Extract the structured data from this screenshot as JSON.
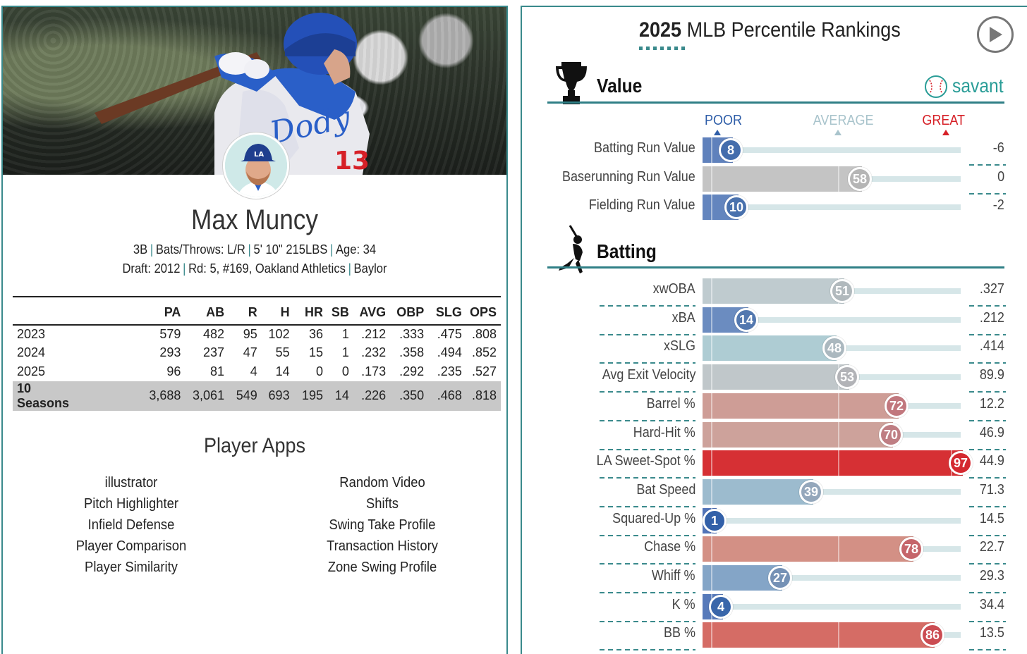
{
  "player": {
    "name": "Max Muncy",
    "position": "3B",
    "bats_throws": "Bats/Throws: L/R",
    "height_weight": "5' 10\" 215LBS",
    "age": "Age: 34",
    "draft_label": "Draft:",
    "draft_year": "2012",
    "draft_round": "Rd: 5, #169, Oakland Athletics",
    "school": "Baylor"
  },
  "stats_table": {
    "headers": [
      "",
      "PA",
      "AB",
      "R",
      "H",
      "HR",
      "SB",
      "AVG",
      "OBP",
      "SLG",
      "OPS"
    ],
    "rows": [
      [
        "2023",
        "579",
        "482",
        "95",
        "102",
        "36",
        "1",
        ".212",
        ".333",
        ".475",
        ".808"
      ],
      [
        "2024",
        "293",
        "237",
        "47",
        "55",
        "15",
        "1",
        ".232",
        ".358",
        ".494",
        ".852"
      ],
      [
        "2025",
        "96",
        "81",
        "4",
        "14",
        "0",
        "0",
        ".173",
        ".292",
        ".235",
        ".527"
      ]
    ],
    "total": [
      "10 Seasons",
      "3,688",
      "3,061",
      "549",
      "693",
      "195",
      "14",
      ".226",
      ".350",
      ".468",
      ".818"
    ]
  },
  "player_apps": {
    "title": "Player Apps",
    "left": [
      "illustrator",
      "Pitch Highlighter",
      "Infield Defense",
      "Player Comparison",
      "Player Similarity"
    ],
    "right": [
      "Random Video",
      "Shifts",
      "Swing Take Profile",
      "Transaction History",
      "Zone Swing Profile"
    ]
  },
  "rankings": {
    "title_year": "2025",
    "title_rest": "MLB Percentile Rankings",
    "brand": "savant",
    "scale": {
      "poor": "POOR",
      "average": "AVERAGE",
      "great": "GREAT"
    },
    "colors": {
      "poor": "#2f5ea8",
      "average": "#a9a9a9",
      "great": "#d62027",
      "teal": "#3a8a8c"
    },
    "sections": [
      {
        "title": "Value",
        "icon": "trophy-icon",
        "metrics": [
          {
            "label": "Batting Run Value",
            "percentile": 8,
            "value": "-6"
          },
          {
            "label": "Baserunning Run Value",
            "percentile": 58,
            "value": "0"
          },
          {
            "label": "Fielding Run Value",
            "percentile": 10,
            "value": "-2"
          }
        ]
      },
      {
        "title": "Batting",
        "icon": "batter-icon",
        "metrics": [
          {
            "label": "xwOBA",
            "percentile": 51,
            "value": ".327"
          },
          {
            "label": "xBA",
            "percentile": 14,
            "value": ".212"
          },
          {
            "label": "xSLG",
            "percentile": 48,
            "value": ".414"
          },
          {
            "label": "Avg Exit Velocity",
            "percentile": 53,
            "value": "89.9"
          },
          {
            "label": "Barrel %",
            "percentile": 72,
            "value": "12.2"
          },
          {
            "label": "Hard-Hit %",
            "percentile": 70,
            "value": "46.9"
          },
          {
            "label": "LA Sweet-Spot %",
            "percentile": 97,
            "value": "44.9"
          },
          {
            "label": "Bat Speed",
            "percentile": 39,
            "value": "71.3"
          },
          {
            "label": "Squared-Up %",
            "percentile": 1,
            "value": "14.5"
          },
          {
            "label": "Chase %",
            "percentile": 78,
            "value": "22.7"
          },
          {
            "label": "Whiff %",
            "percentile": 27,
            "value": "29.3"
          },
          {
            "label": "K %",
            "percentile": 4,
            "value": "34.4"
          },
          {
            "label": "BB %",
            "percentile": 86,
            "value": "13.5"
          }
        ]
      }
    ]
  }
}
